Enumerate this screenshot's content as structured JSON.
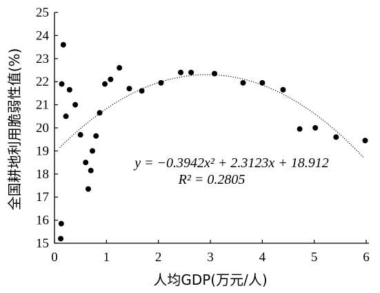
{
  "chart_data": {
    "type": "scatter",
    "title": "",
    "xlabel": "人均GDP(万元/人)",
    "ylabel": "全国耕地利用脆弱性值(%)",
    "xlim": [
      0,
      6
    ],
    "ylim": [
      15,
      25
    ],
    "xticks": [
      "0",
      "1",
      "2",
      "3",
      "4",
      "5",
      "6"
    ],
    "yticks": [
      "15",
      "16",
      "17",
      "18",
      "19",
      "20",
      "21",
      "22",
      "23",
      "24",
      "25"
    ],
    "grid": false,
    "series": [
      {
        "points": [
          [
            0.12,
            15.2
          ],
          [
            0.13,
            15.85
          ],
          [
            0.14,
            21.9
          ],
          [
            0.17,
            23.6
          ],
          [
            0.22,
            20.5
          ],
          [
            0.29,
            21.65
          ],
          [
            0.4,
            21.0
          ],
          [
            0.5,
            19.7
          ],
          [
            0.6,
            18.5
          ],
          [
            0.65,
            17.35
          ],
          [
            0.7,
            18.15
          ],
          [
            0.73,
            19.0
          ],
          [
            0.8,
            19.65
          ],
          [
            0.87,
            20.65
          ],
          [
            0.97,
            21.9
          ],
          [
            1.08,
            22.1
          ],
          [
            1.25,
            22.6
          ],
          [
            1.44,
            21.7
          ],
          [
            1.68,
            21.6
          ],
          [
            2.05,
            21.95
          ],
          [
            2.43,
            22.4
          ],
          [
            2.63,
            22.4
          ],
          [
            3.08,
            22.35
          ],
          [
            3.63,
            21.95
          ],
          [
            4.0,
            21.95
          ],
          [
            4.4,
            21.65
          ],
          [
            4.72,
            19.95
          ],
          [
            5.02,
            20.0
          ],
          [
            5.42,
            19.6
          ],
          [
            5.98,
            19.45
          ]
        ]
      }
    ],
    "trendline": {
      "type": "polynomial",
      "coefficients": {
        "a": -0.3942,
        "b": 2.3123,
        "c": 18.912
      },
      "x_range": [
        0.1,
        5.95
      ],
      "style": "dotted"
    },
    "annotations": {
      "equation": "y = −0.3942x² + 2.3123x + 18.912",
      "r_squared": "R² = 0.2805"
    }
  }
}
